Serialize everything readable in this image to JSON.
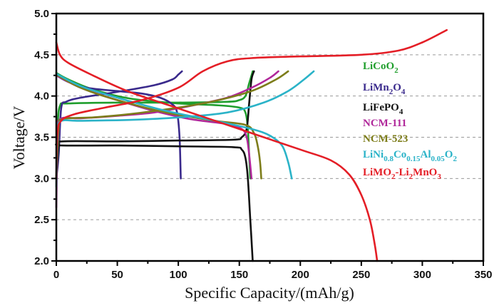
{
  "chart_data": {
    "type": "line",
    "title": "",
    "xlabel": "Specific Capacity/(mAh/g)",
    "ylabel": "Voltage/V",
    "xlim": [
      0,
      350
    ],
    "ylim": [
      2.0,
      5.0
    ],
    "x_ticks": [
      "0",
      "50",
      "100",
      "150",
      "200",
      "250",
      "300",
      "350"
    ],
    "y_ticks": [
      "2.0",
      "2.5",
      "3.0",
      "3.5",
      "4.0",
      "4.5",
      "5.0"
    ],
    "grid": "horizontal dashed at 2.5, 3.0, 3.5, 4.0, 4.5",
    "legend_position": "right",
    "series": [
      {
        "name": "LiCoO2",
        "label_main": "LiCoO",
        "label_sub": "2",
        "label_tail": "",
        "color": "#1f9e2c",
        "charge": [
          [
            0,
            3.0
          ],
          [
            1,
            3.6
          ],
          [
            3,
            3.88
          ],
          [
            10,
            3.91
          ],
          [
            50,
            3.92
          ],
          [
            100,
            3.92
          ],
          [
            140,
            3.93
          ],
          [
            150,
            3.95
          ],
          [
            155,
            4.0
          ],
          [
            158,
            4.15
          ],
          [
            161,
            4.3
          ]
        ],
        "discharge": [
          [
            0,
            4.28
          ],
          [
            10,
            4.2
          ],
          [
            30,
            4.08
          ],
          [
            60,
            3.97
          ],
          [
            100,
            3.91
          ],
          [
            130,
            3.89
          ],
          [
            150,
            3.86
          ],
          [
            155,
            3.8
          ],
          [
            157,
            3.6
          ],
          [
            158,
            3.3
          ],
          [
            159,
            3.0
          ]
        ]
      },
      {
        "name": "LiMn2O4",
        "label_main": "LiMn",
        "label_sub": "2",
        "label_tail": "O|4",
        "color": "#3a2a8c",
        "charge": [
          [
            0,
            3.0
          ],
          [
            2,
            3.3
          ],
          [
            4,
            3.85
          ],
          [
            8,
            3.93
          ],
          [
            20,
            3.98
          ],
          [
            50,
            4.05
          ],
          [
            80,
            4.13
          ],
          [
            95,
            4.2
          ],
          [
            100,
            4.26
          ],
          [
            103,
            4.3
          ]
        ],
        "discharge": [
          [
            0,
            4.25
          ],
          [
            10,
            4.17
          ],
          [
            25,
            4.1
          ],
          [
            50,
            4.06
          ],
          [
            70,
            4.03
          ],
          [
            85,
            3.98
          ],
          [
            95,
            3.9
          ],
          [
            99,
            3.8
          ],
          [
            101,
            3.5
          ],
          [
            102,
            3.0
          ]
        ]
      },
      {
        "name": "LiFePO4",
        "label_main": "LiFePO",
        "label_sub": "4",
        "label_tail": "",
        "color": "#111111",
        "charge": [
          [
            0,
            3.0
          ],
          [
            2,
            3.4
          ],
          [
            5,
            3.45
          ],
          [
            50,
            3.45
          ],
          [
            100,
            3.46
          ],
          [
            145,
            3.47
          ],
          [
            152,
            3.5
          ],
          [
            156,
            3.6
          ],
          [
            158,
            3.9
          ],
          [
            160,
            4.2
          ],
          [
            162,
            4.3
          ]
        ],
        "discharge": [
          [
            0,
            3.42
          ],
          [
            5,
            3.4
          ],
          [
            50,
            3.4
          ],
          [
            100,
            3.39
          ],
          [
            145,
            3.38
          ],
          [
            152,
            3.35
          ],
          [
            155,
            3.25
          ],
          [
            157,
            3.0
          ],
          [
            159,
            2.5
          ],
          [
            161,
            2.0
          ]
        ]
      },
      {
        "name": "NCM-111",
        "label_main": "NCM-111",
        "label_sub": "",
        "label_tail": "",
        "color": "#b0279a",
        "charge": [
          [
            0,
            2.65
          ],
          [
            1,
            3.5
          ],
          [
            3,
            3.72
          ],
          [
            20,
            3.73
          ],
          [
            50,
            3.76
          ],
          [
            80,
            3.8
          ],
          [
            110,
            3.88
          ],
          [
            140,
            3.98
          ],
          [
            160,
            4.1
          ],
          [
            175,
            4.22
          ],
          [
            182,
            4.3
          ]
        ],
        "discharge": [
          [
            0,
            4.25
          ],
          [
            20,
            4.1
          ],
          [
            50,
            3.95
          ],
          [
            80,
            3.82
          ],
          [
            110,
            3.72
          ],
          [
            140,
            3.66
          ],
          [
            152,
            3.6
          ],
          [
            156,
            3.5
          ],
          [
            158,
            3.3
          ],
          [
            160,
            3.0
          ]
        ]
      },
      {
        "name": "NCM-523",
        "label_main": "NCM-523",
        "label_sub": "",
        "label_tail": "",
        "color": "#7d7d1a",
        "charge": [
          [
            0,
            3.0
          ],
          [
            2,
            3.6
          ],
          [
            5,
            3.72
          ],
          [
            30,
            3.74
          ],
          [
            60,
            3.78
          ],
          [
            100,
            3.86
          ],
          [
            130,
            3.94
          ],
          [
            160,
            4.06
          ],
          [
            180,
            4.2
          ],
          [
            190,
            4.3
          ]
        ],
        "discharge": [
          [
            0,
            4.26
          ],
          [
            20,
            4.1
          ],
          [
            50,
            3.95
          ],
          [
            90,
            3.8
          ],
          [
            130,
            3.7
          ],
          [
            155,
            3.65
          ],
          [
            162,
            3.55
          ],
          [
            165,
            3.4
          ],
          [
            167,
            3.2
          ],
          [
            168,
            3.0
          ]
        ]
      },
      {
        "name": "LiNi0.8Co0.15Al0.05O2",
        "label_main": "LiNi",
        "label_sub": "0.8",
        "label_tail": "Co|0.15|Al|0.05|O|2",
        "color": "#2bb3c8",
        "charge": [
          [
            0,
            2.9
          ],
          [
            1,
            3.5
          ],
          [
            3,
            3.69
          ],
          [
            20,
            3.7
          ],
          [
            60,
            3.71
          ],
          [
            100,
            3.74
          ],
          [
            140,
            3.8
          ],
          [
            170,
            3.92
          ],
          [
            190,
            4.06
          ],
          [
            203,
            4.2
          ],
          [
            211,
            4.3
          ]
        ],
        "discharge": [
          [
            0,
            4.27
          ],
          [
            20,
            4.12
          ],
          [
            50,
            3.98
          ],
          [
            90,
            3.82
          ],
          [
            130,
            3.7
          ],
          [
            160,
            3.6
          ],
          [
            175,
            3.52
          ],
          [
            185,
            3.4
          ],
          [
            190,
            3.2
          ],
          [
            193,
            3.0
          ]
        ]
      },
      {
        "name": "LiMO2-Li2MnO3",
        "label_main": "LiMO",
        "label_sub": "2",
        "label_tail": "-Li|2|MnO|3",
        "color": "#e41e26",
        "charge": [
          [
            0,
            3.0
          ],
          [
            1,
            3.55
          ],
          [
            4,
            3.7
          ],
          [
            15,
            3.78
          ],
          [
            40,
            3.86
          ],
          [
            70,
            3.95
          ],
          [
            100,
            4.1
          ],
          [
            120,
            4.3
          ],
          [
            140,
            4.42
          ],
          [
            160,
            4.46
          ],
          [
            200,
            4.48
          ],
          [
            250,
            4.5
          ],
          [
            280,
            4.55
          ],
          [
            300,
            4.65
          ],
          [
            320,
            4.8
          ]
        ],
        "discharge": [
          [
            0,
            4.65
          ],
          [
            3,
            4.5
          ],
          [
            10,
            4.4
          ],
          [
            30,
            4.25
          ],
          [
            60,
            4.05
          ],
          [
            100,
            3.85
          ],
          [
            150,
            3.6
          ],
          [
            200,
            3.35
          ],
          [
            225,
            3.22
          ],
          [
            240,
            3.05
          ],
          [
            250,
            2.8
          ],
          [
            257,
            2.5
          ],
          [
            261,
            2.2
          ],
          [
            263,
            2.0
          ]
        ]
      }
    ]
  }
}
